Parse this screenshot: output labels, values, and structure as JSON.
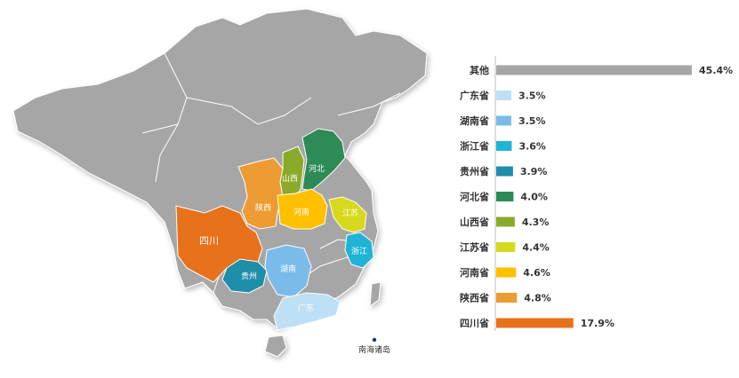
{
  "chart_data": {
    "type": "bar",
    "orientation": "horizontal",
    "categories": [
      "其他",
      "广东省",
      "湖南省",
      "浙江省",
      "贵州省",
      "河北省",
      "山西省",
      "江苏省",
      "河南省",
      "陕西省",
      "四川省"
    ],
    "values": [
      45.4,
      3.5,
      3.5,
      3.6,
      3.9,
      4.0,
      4.3,
      4.4,
      4.6,
      4.8,
      17.9
    ],
    "value_labels": [
      "45.4%",
      "3.5%",
      "3.5%",
      "3.6%",
      "3.9%",
      "4.0%",
      "4.3%",
      "4.4%",
      "4.6%",
      "4.8%",
      "17.9%"
    ],
    "colors": [
      "#a6a6a6",
      "#bde0f5",
      "#7bbbe9",
      "#1fb4d5",
      "#1f8ea8",
      "#2e8b57",
      "#8aab2a",
      "#d7d91c",
      "#ffc000",
      "#ed9b33",
      "#e8711c"
    ],
    "xlim": [
      0,
      45.4
    ],
    "legend": "none"
  },
  "map": {
    "base_color": "#a6a6a6",
    "border_color": "#ffffff",
    "province_labels": [
      {
        "key": "sichuan",
        "text": "四川",
        "color": "#e8711c"
      },
      {
        "key": "shaanxi",
        "text": "陕西",
        "color": "#ed9b33"
      },
      {
        "key": "shanxi",
        "text": "山西",
        "color": "#8aab2a"
      },
      {
        "key": "hebei",
        "text": "河北",
        "color": "#2e8b57"
      },
      {
        "key": "henan",
        "text": "河南",
        "color": "#ffc000"
      },
      {
        "key": "jiangsu",
        "text": "江苏",
        "color": "#d7d91c"
      },
      {
        "key": "zhejiang",
        "text": "浙江",
        "color": "#1fb4d5"
      },
      {
        "key": "guizhou",
        "text": "贵州",
        "color": "#1f8ea8"
      },
      {
        "key": "hunan",
        "text": "湖南",
        "color": "#7bbbe9"
      },
      {
        "key": "guangdong",
        "text": "广东",
        "color": "#bde0f5"
      }
    ],
    "islands_label": "南海诸岛"
  }
}
